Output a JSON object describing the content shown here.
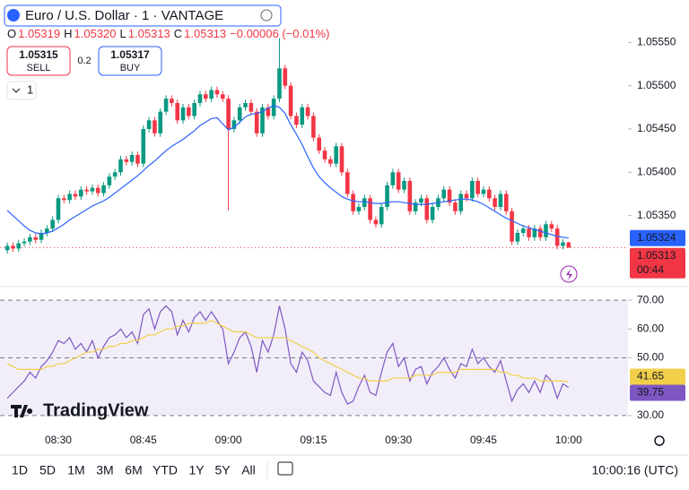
{
  "header": {
    "title": "Euro / U.S. Dollar · 1 · VANTAGE",
    "ohlc": [
      {
        "key": "O",
        "value": "1.05319"
      },
      {
        "key": "H",
        "value": "1.05320"
      },
      {
        "key": "L",
        "value": "1.05313"
      },
      {
        "key": "C",
        "value": "1.05313"
      }
    ],
    "change": "−0.00006 (−0.01%)"
  },
  "trade": {
    "sell_price": "1.05315",
    "sell": "SELL",
    "spread": "0.2",
    "buy_price": "1.05317",
    "buy": "BUY"
  },
  "interval": "1",
  "countdown": "00:44",
  "logo": "TradingView",
  "toolbar": {
    "ranges": [
      "1D",
      "5D",
      "1M",
      "3M",
      "6M",
      "YTD",
      "1Y",
      "5Y",
      "All"
    ],
    "time": "10:00:16 (UTC)"
  },
  "chart_data": [
    {
      "type": "candlestick",
      "up_color": "#089981",
      "down_color": "#f23645",
      "grid": false,
      "categories": [
        null,
        null,
        null,
        null,
        null,
        null,
        null,
        null,
        null,
        "08:30",
        null,
        null,
        null,
        null,
        null,
        null,
        null,
        null,
        null,
        null,
        null,
        null,
        null,
        null,
        "08:45",
        null,
        null,
        null,
        null,
        null,
        null,
        null,
        null,
        null,
        null,
        null,
        null,
        null,
        null,
        "09:00",
        null,
        null,
        null,
        null,
        null,
        null,
        null,
        null,
        null,
        null,
        null,
        null,
        null,
        null,
        "09:15",
        null,
        null,
        null,
        null,
        null,
        null,
        null,
        null,
        null,
        null,
        null,
        null,
        null,
        null,
        "09:30",
        null,
        null,
        null,
        null,
        null,
        null,
        null,
        null,
        null,
        null,
        null,
        null,
        null,
        null,
        "09:45",
        null,
        null,
        null,
        null,
        null,
        null,
        null,
        null,
        null,
        null,
        null,
        null,
        null,
        null,
        "10:00"
      ],
      "open": [
        1.0531,
        1.05315,
        1.05312,
        1.05318,
        1.0532,
        1.05325,
        1.05322,
        1.0533,
        1.05335,
        1.05345,
        1.0537,
        1.05368,
        1.05375,
        1.05372,
        1.0538,
        1.05378,
        1.05382,
        1.05376,
        1.05385,
        1.05395,
        1.054,
        1.05415,
        1.05412,
        1.0542,
        1.0541,
        1.0545,
        1.0546,
        1.05445,
        1.0547,
        1.05485,
        1.0548,
        1.0546,
        1.05475,
        1.05465,
        1.0548,
        1.0549,
        1.05485,
        1.05495,
        1.0549,
        1.05485,
        1.0545,
        1.0546,
        1.05475,
        1.0548,
        1.0547,
        1.05445,
        1.05475,
        1.05465,
        1.05485,
        1.0552,
        1.055,
        1.05465,
        1.05455,
        1.05475,
        1.05465,
        1.0544,
        1.05425,
        1.05415,
        1.0541,
        1.0543,
        1.054,
        1.05375,
        1.05355,
        1.0536,
        1.0537,
        1.05345,
        1.0534,
        1.0536,
        1.05385,
        1.054,
        1.0538,
        1.0539,
        1.05355,
        1.05365,
        1.0537,
        1.05345,
        1.0536,
        1.0537,
        1.0538,
        1.05365,
        1.05355,
        1.05375,
        1.0537,
        1.0539,
        1.05375,
        1.0538,
        1.0537,
        1.0536,
        1.05375,
        1.05355,
        1.0532,
        1.0533,
        1.05335,
        1.05325,
        1.05335,
        1.05325,
        1.0534,
        1.05335,
        1.05315,
        1.05319
      ],
      "high": [
        1.05319,
        1.05319,
        1.05322,
        1.05324,
        1.05329,
        1.05329,
        1.05334,
        1.05339,
        1.05349,
        1.05374,
        1.05374,
        1.05379,
        1.05379,
        1.05384,
        1.05384,
        1.05386,
        1.05386,
        1.05389,
        1.05399,
        1.05404,
        1.05419,
        1.05419,
        1.05424,
        1.05424,
        1.05454,
        1.05464,
        1.05464,
        1.05474,
        1.05489,
        1.05489,
        1.05484,
        1.05479,
        1.05479,
        1.05484,
        1.05494,
        1.05494,
        1.05499,
        1.05499,
        1.05494,
        1.05489,
        1.05464,
        1.05479,
        1.05484,
        1.05484,
        1.05474,
        1.05479,
        1.05479,
        1.05489,
        1.05555,
        1.05524,
        1.05504,
        1.05469,
        1.05479,
        1.05479,
        1.05469,
        1.05444,
        1.05429,
        1.05419,
        1.05434,
        1.05434,
        1.05404,
        1.05379,
        1.05364,
        1.05374,
        1.05374,
        1.05349,
        1.05364,
        1.05389,
        1.05404,
        1.05404,
        1.05394,
        1.05394,
        1.05369,
        1.05374,
        1.05374,
        1.05364,
        1.05374,
        1.05384,
        1.05384,
        1.05369,
        1.05379,
        1.05379,
        1.05394,
        1.05394,
        1.05384,
        1.05384,
        1.05374,
        1.05379,
        1.05379,
        1.05359,
        1.05334,
        1.05339,
        1.05339,
        1.05339,
        1.05339,
        1.05344,
        1.05344,
        1.05339,
        1.05323,
        1.0532
      ],
      "low": [
        1.05306,
        1.05308,
        1.05308,
        1.05314,
        1.05316,
        1.05318,
        1.05318,
        1.05326,
        1.05331,
        1.05341,
        1.05364,
        1.05364,
        1.05368,
        1.05368,
        1.05374,
        1.05374,
        1.05372,
        1.05372,
        1.05381,
        1.05391,
        1.05396,
        1.05408,
        1.05408,
        1.05406,
        1.05406,
        1.05446,
        1.05441,
        1.05441,
        1.05466,
        1.05476,
        1.05456,
        1.05456,
        1.05461,
        1.05461,
        1.05476,
        1.05481,
        1.05481,
        1.05486,
        1.05481,
        1.05356,
        1.05446,
        1.05456,
        1.05471,
        1.05466,
        1.05441,
        1.05441,
        1.05461,
        1.05461,
        1.05481,
        1.05496,
        1.05461,
        1.05451,
        1.05451,
        1.05461,
        1.05436,
        1.05421,
        1.05411,
        1.05406,
        1.05406,
        1.05396,
        1.05371,
        1.05351,
        1.05351,
        1.05356,
        1.05341,
        1.05336,
        1.05336,
        1.05356,
        1.05381,
        1.05376,
        1.05376,
        1.05351,
        1.05351,
        1.05361,
        1.05341,
        1.05341,
        1.05356,
        1.05366,
        1.05361,
        1.05351,
        1.05351,
        1.05366,
        1.05366,
        1.05371,
        1.05371,
        1.05366,
        1.05356,
        1.05356,
        1.05351,
        1.05316,
        1.05316,
        1.05326,
        1.05321,
        1.05321,
        1.05321,
        1.05321,
        1.05331,
        1.05311,
        1.05311,
        1.05313
      ],
      "close": [
        1.05315,
        1.05312,
        1.05318,
        1.0532,
        1.05325,
        1.05322,
        1.0533,
        1.05335,
        1.05345,
        1.0537,
        1.05368,
        1.05375,
        1.05372,
        1.0538,
        1.05378,
        1.05382,
        1.05376,
        1.05385,
        1.05395,
        1.054,
        1.05415,
        1.05412,
        1.0542,
        1.0541,
        1.0545,
        1.0546,
        1.05445,
        1.0547,
        1.05485,
        1.0548,
        1.0546,
        1.05475,
        1.05465,
        1.0548,
        1.0549,
        1.05485,
        1.05495,
        1.0549,
        1.05485,
        1.0545,
        1.0546,
        1.05475,
        1.0548,
        1.0547,
        1.05445,
        1.05475,
        1.05465,
        1.05485,
        1.0552,
        1.055,
        1.05465,
        1.05455,
        1.05475,
        1.05465,
        1.0544,
        1.05425,
        1.05415,
        1.0541,
        1.0543,
        1.054,
        1.05375,
        1.05355,
        1.0536,
        1.0537,
        1.05345,
        1.0534,
        1.0536,
        1.05385,
        1.054,
        1.0538,
        1.0539,
        1.05355,
        1.05365,
        1.0537,
        1.05345,
        1.0536,
        1.0537,
        1.0538,
        1.05365,
        1.05355,
        1.05375,
        1.0537,
        1.0539,
        1.05375,
        1.0538,
        1.0537,
        1.0536,
        1.05375,
        1.05355,
        1.0532,
        1.0533,
        1.05335,
        1.05325,
        1.05335,
        1.05325,
        1.0534,
        1.05335,
        1.05315,
        1.05319,
        1.05313
      ],
      "ma": {
        "color": "#2962ff",
        "values": [
          1.05356,
          1.0535,
          1.05344,
          1.05338,
          1.05333,
          1.0533,
          1.05329,
          1.0533,
          1.05332,
          1.05336,
          1.0534,
          1.05345,
          1.05349,
          1.05353,
          1.05357,
          1.05361,
          1.05364,
          1.05367,
          1.05371,
          1.05376,
          1.05381,
          1.05386,
          1.05391,
          1.05396,
          1.05402,
          1.05408,
          1.05413,
          1.05419,
          1.05425,
          1.0543,
          1.05434,
          1.05438,
          1.05443,
          1.05448,
          1.05454,
          1.05458,
          1.05462,
          1.05463,
          1.05456,
          1.05449,
          1.05452,
          1.05458,
          1.05464,
          1.05467,
          1.05468,
          1.0547,
          1.05474,
          1.05477,
          1.05475,
          1.05468,
          1.05455,
          1.05444,
          1.05432,
          1.05418,
          1.05405,
          1.05395,
          1.05388,
          1.05382,
          1.05377,
          1.05372,
          1.05369,
          1.05367,
          1.05366,
          1.05366,
          1.05365,
          1.05364,
          1.05364,
          1.05365,
          1.05366,
          1.05366,
          1.05365,
          1.05364,
          1.05363,
          1.05363,
          1.05363,
          1.05364,
          1.05365,
          1.05366,
          1.05367,
          1.05368,
          1.05369,
          1.05369,
          1.05368,
          1.05366,
          1.05363,
          1.05359,
          1.05355,
          1.05351,
          1.05347,
          1.05344,
          1.05341,
          1.05338,
          1.05336,
          1.05334,
          1.05332,
          1.0533,
          1.05328,
          1.05326,
          1.05325,
          1.05324
        ]
      },
      "ylim": [
        1.0527,
        1.0557
      ],
      "yticks": [
        {
          "value": 1.0535,
          "label": "1.05350"
        },
        {
          "value": 1.054,
          "label": "1.05400"
        },
        {
          "value": 1.0545,
          "label": "1.05450"
        },
        {
          "value": 1.055,
          "label": "1.05500"
        },
        {
          "value": 1.0555,
          "label": "1.05550"
        }
      ]
    },
    {
      "type": "line",
      "ylim": [
        25,
        75
      ],
      "yticks": [
        {
          "value": 30,
          "label": "30.00"
        },
        {
          "value": 50,
          "label": "50.00"
        },
        {
          "value": 60,
          "label": "60.00"
        },
        {
          "value": 70,
          "label": "70.00"
        }
      ],
      "band": {
        "lower": 30,
        "middle": 50,
        "upper": 70,
        "color": "#7e57c2"
      },
      "series": [
        {
          "color": "#7e57c2",
          "values": [
            36,
            38,
            40,
            42,
            45,
            43,
            47,
            49,
            52,
            56,
            55,
            57,
            53,
            55,
            52,
            56,
            50,
            54,
            57,
            58,
            60,
            57,
            59,
            55,
            65,
            67,
            60,
            66,
            68,
            66,
            58,
            63,
            59,
            64,
            66,
            63,
            66,
            63,
            60,
            48,
            52,
            57,
            59,
            54,
            45,
            56,
            52,
            58,
            68,
            60,
            48,
            45,
            52,
            49,
            42,
            40,
            38,
            37,
            45,
            38,
            34,
            35,
            40,
            44,
            38,
            37,
            45,
            52,
            55,
            47,
            50,
            42,
            46,
            47,
            41,
            45,
            47,
            50,
            46,
            43,
            48,
            47,
            53,
            48,
            50,
            47,
            45,
            49,
            42,
            35,
            39,
            41,
            38,
            42,
            38,
            44,
            42,
            36,
            41,
            39.75
          ]
        },
        {
          "color": "#f2cf4a",
          "values": [
            48,
            47,
            46,
            46,
            46,
            46,
            46,
            47,
            47,
            48,
            48,
            49,
            50,
            51,
            52,
            52,
            53,
            53,
            54,
            54,
            55,
            55,
            56,
            56,
            57,
            58,
            58,
            59,
            60,
            60,
            61,
            61,
            62,
            62,
            62,
            62,
            63,
            62,
            61,
            60,
            59,
            59,
            59,
            58,
            57,
            57,
            57,
            57,
            57,
            57,
            56,
            55,
            54,
            53,
            52,
            50,
            49,
            48,
            47,
            46,
            45,
            44,
            43,
            43,
            42,
            42,
            42,
            42,
            43,
            43,
            43,
            43,
            44,
            44,
            44,
            44,
            45,
            45,
            45,
            45,
            46,
            46,
            46,
            46,
            46,
            46,
            46,
            45,
            45,
            44,
            44,
            43,
            43,
            43,
            42,
            42,
            42,
            42,
            42,
            41.65
          ]
        }
      ]
    }
  ]
}
